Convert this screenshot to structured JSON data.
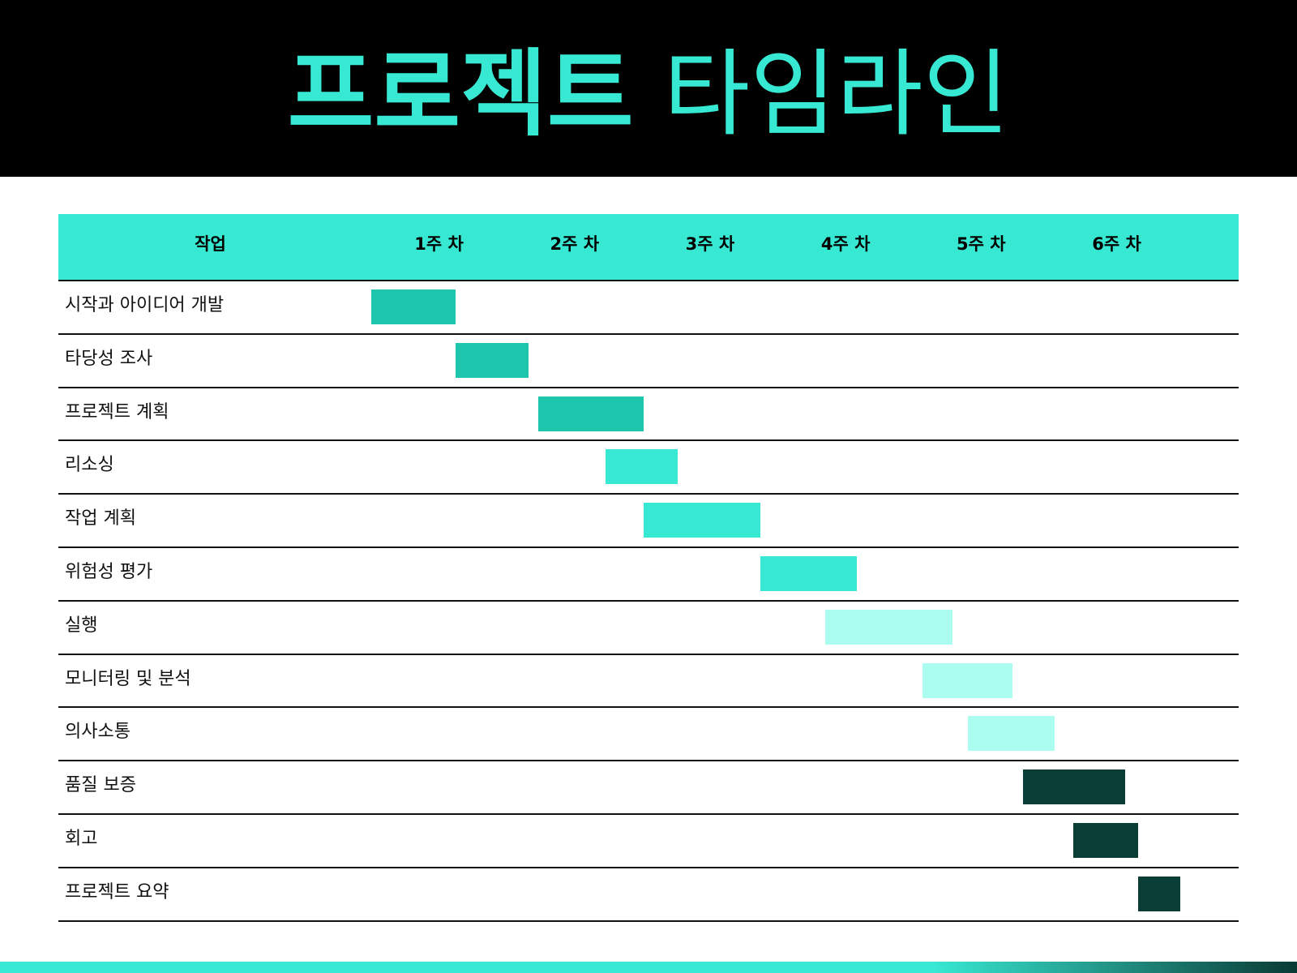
{
  "title": {
    "bold": "프로젝트",
    "light": "타임라인"
  },
  "colors": {
    "header_bg": "#000000",
    "accent": "#37E8D2",
    "teal": "#1FC6AE",
    "light_teal": "#ABFDF0",
    "dark_teal": "#093D36",
    "gradient_end": "#0A3A34"
  },
  "chart_data": {
    "type": "bar",
    "subtype": "gantt",
    "title": "프로젝트 타임라인",
    "task_header": "작업",
    "weeks": [
      "1주 차",
      "2주 차",
      "3주 차",
      "4주 차",
      "5주 차",
      "6주 차"
    ],
    "x_unit": "주",
    "xlim": [
      0.5,
      6.9
    ],
    "grid": false,
    "tasks": [
      {
        "name": "시작과 아이디어 개발",
        "start": 0.5,
        "end": 1.12,
        "color": "#1FC6AE"
      },
      {
        "name": "타당성 조사",
        "start": 1.12,
        "end": 1.66,
        "color": "#1FC6AE"
      },
      {
        "name": "프로젝트 계획",
        "start": 1.73,
        "end": 2.51,
        "color": "#1FC6AE"
      },
      {
        "name": "리소싱",
        "start": 2.23,
        "end": 2.76,
        "color": "#37E8D2"
      },
      {
        "name": "작업 계획",
        "start": 2.51,
        "end": 3.37,
        "color": "#37E8D2"
      },
      {
        "name": "위험성 평가",
        "start": 3.37,
        "end": 4.08,
        "color": "#37E8D2"
      },
      {
        "name": "실행",
        "start": 3.85,
        "end": 4.79,
        "color": "#ABFDF0"
      },
      {
        "name": "모니터링 및 분석",
        "start": 4.57,
        "end": 5.23,
        "color": "#ABFDF0"
      },
      {
        "name": "의사소통",
        "start": 4.9,
        "end": 5.54,
        "color": "#ABFDF0"
      },
      {
        "name": "품질 보증",
        "start": 5.31,
        "end": 6.06,
        "color": "#093D36"
      },
      {
        "name": "회고",
        "start": 5.68,
        "end": 6.16,
        "color": "#093D36"
      },
      {
        "name": "프로젝트 요약",
        "start": 6.16,
        "end": 6.47,
        "color": "#093D36"
      }
    ]
  }
}
